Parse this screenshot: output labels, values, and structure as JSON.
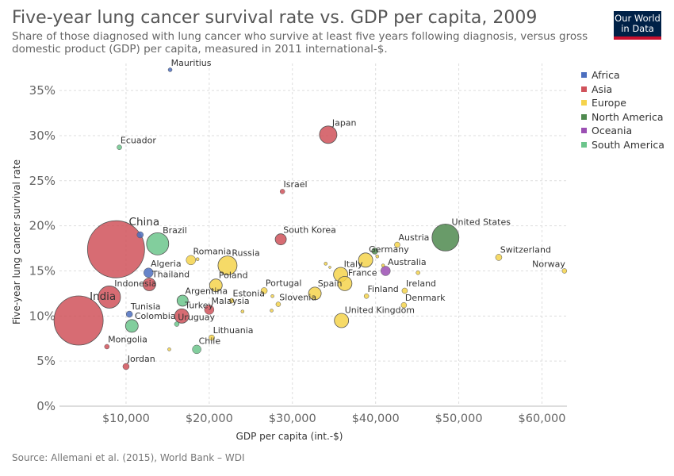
{
  "header": {
    "title": "Five-year lung cancer survival rate vs. GDP per capita, 2009",
    "subtitle": "Share of those diagnosed with lung cancer who survive at least five years following diagnosis, versus gross domestic product (GDP) per capita, measured in 2011 international-$.",
    "logo_line1": "Our World",
    "logo_line2": "in Data"
  },
  "footer": {
    "source": "Source: Allemani et al. (2015), World Bank – WDI"
  },
  "colors": {
    "Africa": "#4c6fbf",
    "Asia": "#d0525b",
    "Europe": "#f5d34c",
    "North America": "#4f8a4f",
    "Oceania": "#9b4fb3",
    "South America": "#6cc58c"
  },
  "chart_data": {
    "type": "scatter",
    "title": "Five-year lung cancer survival rate vs. GDP per capita, 2009",
    "xlabel": "GDP per capita (int.-$)",
    "ylabel": "Five-year lung cancer survival rate",
    "xlim": [
      2000,
      63000
    ],
    "ylim": [
      0,
      38
    ],
    "x_ticks": [
      10000,
      20000,
      30000,
      40000,
      50000,
      60000
    ],
    "x_tick_labels": [
      "$10,000",
      "$20,000",
      "$30,000",
      "$40,000",
      "$50,000",
      "$60,000"
    ],
    "y_ticks": [
      0,
      5,
      10,
      15,
      20,
      25,
      30,
      35
    ],
    "y_tick_labels": [
      "0%",
      "5%",
      "10%",
      "15%",
      "20%",
      "25%",
      "30%",
      "35%"
    ],
    "grid": true,
    "legend_position": "right",
    "legend": [
      "Africa",
      "Asia",
      "Europe",
      "North America",
      "Oceania",
      "South America"
    ],
    "points": [
      {
        "label": "Mauritius",
        "region": "Africa",
        "x": 15300,
        "y": 37.3,
        "size": 2.5
      },
      {
        "label": "Ecuador",
        "region": "South America",
        "x": 9200,
        "y": 28.7,
        "size": 3
      },
      {
        "label": "Japan",
        "region": "Asia",
        "x": 34300,
        "y": 30.1,
        "size": 11
      },
      {
        "label": "Israel",
        "region": "Asia",
        "x": 28800,
        "y": 23.8,
        "size": 3
      },
      {
        "label": "China",
        "region": "Asia",
        "x": 8800,
        "y": 17.4,
        "size": 36
      },
      {
        "label": "",
        "region": "Africa",
        "x": 11700,
        "y": 19.0,
        "size": 4
      },
      {
        "label": "Brazil",
        "region": "South America",
        "x": 13800,
        "y": 18.0,
        "size": 14
      },
      {
        "label": "South Korea",
        "region": "Asia",
        "x": 28600,
        "y": 18.5,
        "size": 7
      },
      {
        "label": "United States",
        "region": "North America",
        "x": 48400,
        "y": 18.7,
        "size": 17
      },
      {
        "label": "Austria",
        "region": "Europe",
        "x": 42600,
        "y": 17.9,
        "size": 3.5
      },
      {
        "label": "Switzerland",
        "region": "Europe",
        "x": 54800,
        "y": 16.5,
        "size": 4
      },
      {
        "label": "Norway",
        "region": "Europe",
        "x": 62700,
        "y": 15.0,
        "size": 3
      },
      {
        "label": "Romania",
        "region": "Europe",
        "x": 17800,
        "y": 16.2,
        "size": 6
      },
      {
        "label": "",
        "region": "Europe",
        "x": 18600,
        "y": 16.3,
        "size": 2
      },
      {
        "label": "Russia",
        "region": "Europe",
        "x": 22200,
        "y": 15.6,
        "size": 12
      },
      {
        "label": "Germany",
        "region": "Europe",
        "x": 38800,
        "y": 16.2,
        "size": 9
      },
      {
        "label": "",
        "region": "North America",
        "x": 39900,
        "y": 17.2,
        "size": 4
      },
      {
        "label": "",
        "region": "Europe",
        "x": 40200,
        "y": 16.6,
        "size": 2
      },
      {
        "label": "Australia",
        "region": "Oceania",
        "x": 41200,
        "y": 15.0,
        "size": 6
      },
      {
        "label": "",
        "region": "Europe",
        "x": 40900,
        "y": 15.6,
        "size": 2
      },
      {
        "label": "",
        "region": "Europe",
        "x": 45100,
        "y": 14.8,
        "size": 2.5
      },
      {
        "label": "Italy",
        "region": "Europe",
        "x": 35800,
        "y": 14.6,
        "size": 9
      },
      {
        "label": "",
        "region": "Europe",
        "x": 34000,
        "y": 15.8,
        "size": 2
      },
      {
        "label": "",
        "region": "Europe",
        "x": 34500,
        "y": 15.4,
        "size": 1.5
      },
      {
        "label": "France",
        "region": "Europe",
        "x": 36300,
        "y": 13.6,
        "size": 9
      },
      {
        "label": "Algeria",
        "region": "Africa",
        "x": 12700,
        "y": 14.8,
        "size": 6
      },
      {
        "label": "Thailand",
        "region": "Asia",
        "x": 12800,
        "y": 13.5,
        "size": 8
      },
      {
        "label": "Poland",
        "region": "Europe",
        "x": 20800,
        "y": 13.4,
        "size": 8
      },
      {
        "label": "Portugal",
        "region": "Europe",
        "x": 26600,
        "y": 12.8,
        "size": 4
      },
      {
        "label": "",
        "region": "Europe",
        "x": 27600,
        "y": 12.2,
        "size": 2
      },
      {
        "label": "Spain",
        "region": "Europe",
        "x": 32700,
        "y": 12.5,
        "size": 8
      },
      {
        "label": "Finland",
        "region": "Europe",
        "x": 38900,
        "y": 12.2,
        "size": 3
      },
      {
        "label": "Ireland",
        "region": "Europe",
        "x": 43500,
        "y": 12.8,
        "size": 3.5
      },
      {
        "label": "Indonesia",
        "region": "Asia",
        "x": 8000,
        "y": 12.1,
        "size": 14
      },
      {
        "label": "Argentina",
        "region": "South America",
        "x": 16800,
        "y": 11.7,
        "size": 7
      },
      {
        "label": "Estonia",
        "region": "Europe",
        "x": 22700,
        "y": 11.7,
        "size": 3
      },
      {
        "label": "Slovenia",
        "region": "Europe",
        "x": 28300,
        "y": 11.3,
        "size": 3
      },
      {
        "label": "Denmark",
        "region": "Europe",
        "x": 43400,
        "y": 11.2,
        "size": 3.5
      },
      {
        "label": "Malaysia",
        "region": "Asia",
        "x": 20000,
        "y": 10.7,
        "size": 6
      },
      {
        "label": "Turkey",
        "region": "Asia",
        "x": 16700,
        "y": 10.0,
        "size": 9
      },
      {
        "label": "",
        "region": "Europe",
        "x": 24000,
        "y": 10.5,
        "size": 2
      },
      {
        "label": "",
        "region": "Europe",
        "x": 27500,
        "y": 10.6,
        "size": 2
      },
      {
        "label": "Lithuania",
        "region": "Europe",
        "x": 20300,
        "y": 7.6,
        "size": 3.5
      },
      {
        "label": "United Kingdom",
        "region": "Europe",
        "x": 35900,
        "y": 9.5,
        "size": 9
      },
      {
        "label": "India",
        "region": "Asia",
        "x": 4300,
        "y": 9.5,
        "size": 31
      },
      {
        "label": "Tunisia",
        "region": "Africa",
        "x": 10400,
        "y": 10.2,
        "size": 4
      },
      {
        "label": "Colombia",
        "region": "South America",
        "x": 10700,
        "y": 8.9,
        "size": 8
      },
      {
        "label": "Uruguay",
        "region": "South America",
        "x": 16100,
        "y": 9.1,
        "size": 3
      },
      {
        "label": "Chile",
        "region": "South America",
        "x": 18500,
        "y": 6.3,
        "size": 5.5
      },
      {
        "label": "",
        "region": "Europe",
        "x": 15200,
        "y": 6.3,
        "size": 2
      },
      {
        "label": "Mongolia",
        "region": "Asia",
        "x": 7700,
        "y": 6.6,
        "size": 3
      },
      {
        "label": "Jordan",
        "region": "Asia",
        "x": 10000,
        "y": 4.4,
        "size": 4
      }
    ]
  }
}
